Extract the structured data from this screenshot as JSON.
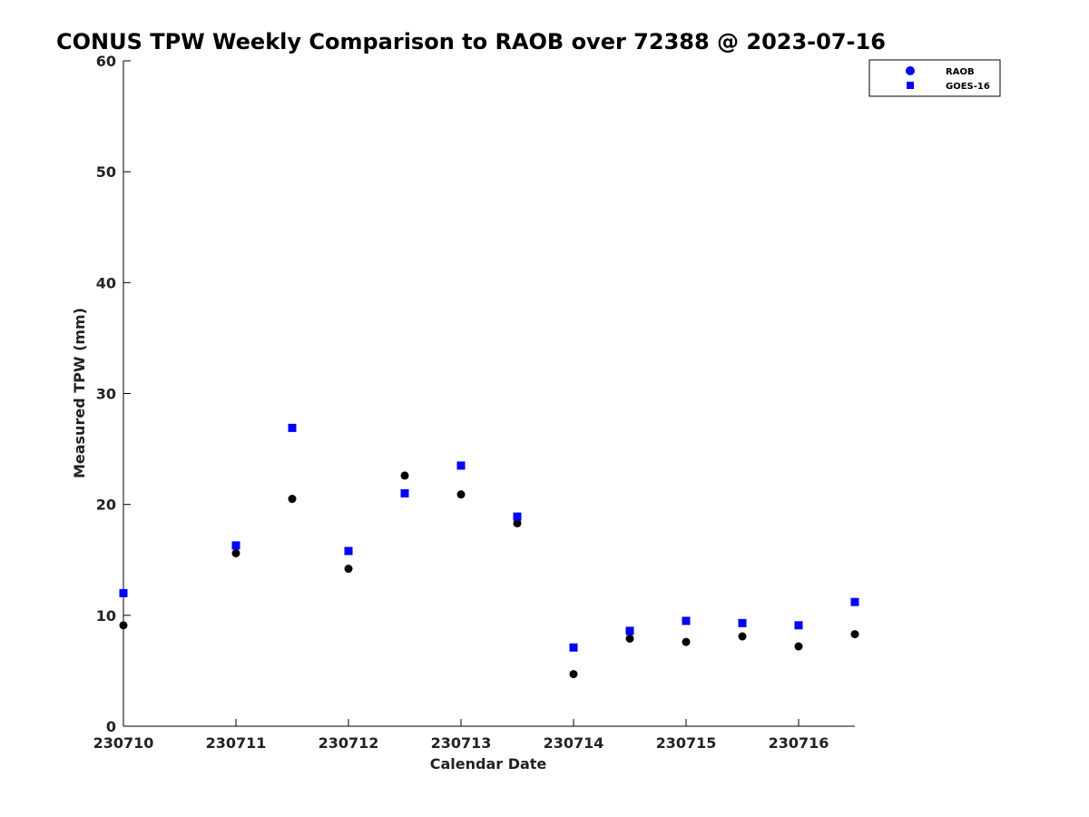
{
  "chart_data": {
    "type": "scatter",
    "title": "CONUS TPW Weekly Comparison to RAOB over 72388 @ 2023-07-16",
    "xlabel": "Calendar Date",
    "ylabel": "Measured TPW (mm)",
    "xlim": [
      230710,
      230716.5
    ],
    "ylim": [
      0,
      60
    ],
    "x_ticks": [
      230710,
      230711,
      230712,
      230713,
      230714,
      230715,
      230716
    ],
    "x_tick_labels": [
      "230710",
      "230711",
      "230712",
      "230713",
      "230714",
      "230715",
      "230716"
    ],
    "y_ticks": [
      0,
      10,
      20,
      30,
      40,
      50,
      60
    ],
    "y_tick_labels": [
      "0",
      "10",
      "20",
      "30",
      "40",
      "50",
      "60"
    ],
    "grid": false,
    "legend_position": "top-right",
    "series": [
      {
        "name": "RAOB",
        "marker": "circle",
        "color": "#000000",
        "legend_color": "#0000ff",
        "x": [
          230710,
          230711,
          230711.5,
          230712,
          230712.5,
          230713,
          230713.5,
          230714,
          230714.5,
          230715,
          230715.5,
          230716,
          230716.5
        ],
        "y": [
          9.1,
          15.6,
          20.5,
          14.2,
          22.6,
          20.9,
          18.3,
          4.7,
          7.9,
          7.6,
          8.1,
          7.2,
          8.3
        ]
      },
      {
        "name": "GOES-16",
        "marker": "square",
        "color": "#0000ff",
        "legend_color": "#0000ff",
        "x": [
          230710,
          230711,
          230711.5,
          230712,
          230712.5,
          230713,
          230713.5,
          230714,
          230714.5,
          230715,
          230715.5,
          230716,
          230716.5
        ],
        "y": [
          12.0,
          16.3,
          26.9,
          15.8,
          21.0,
          23.5,
          18.9,
          7.1,
          8.6,
          9.5,
          9.3,
          9.1,
          11.2
        ]
      }
    ]
  }
}
